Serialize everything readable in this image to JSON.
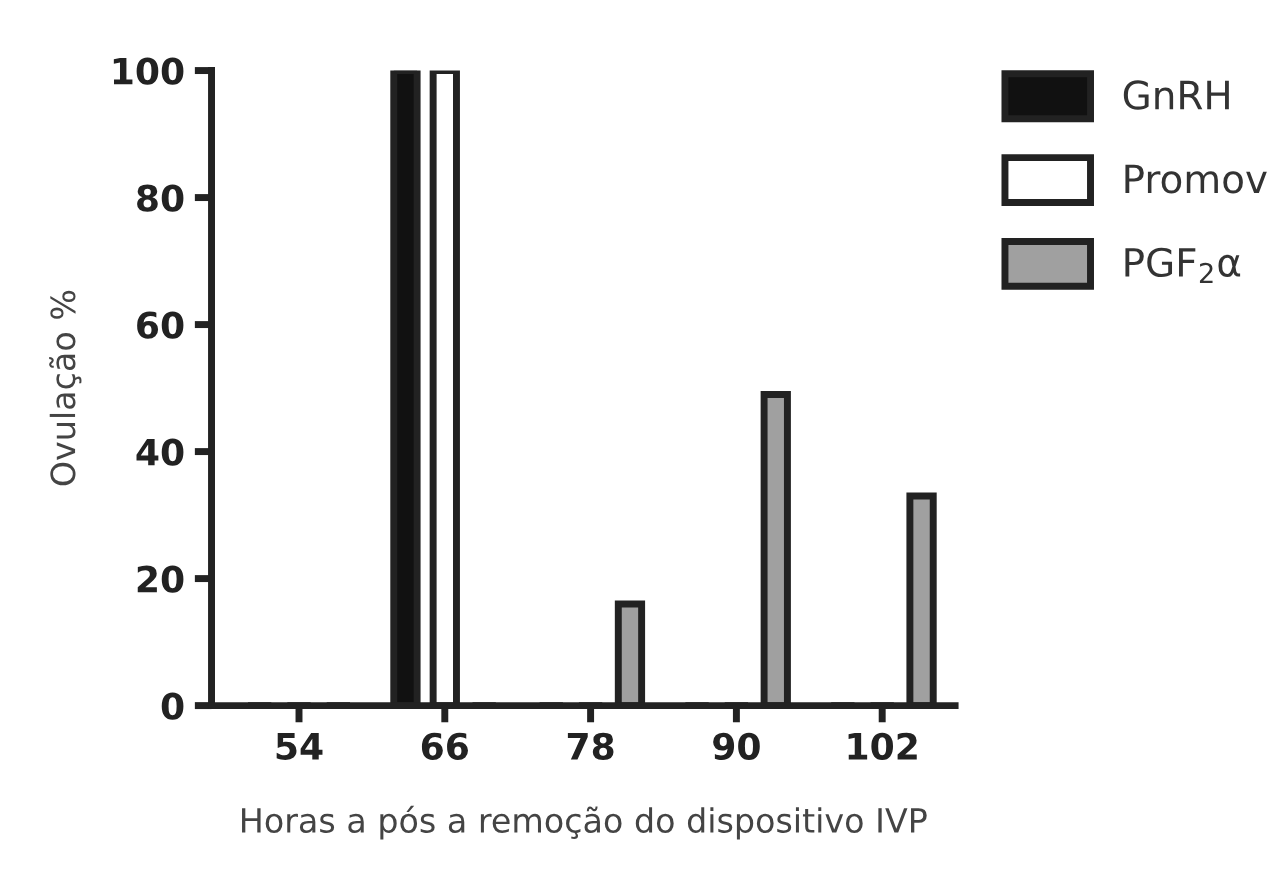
{
  "chart_data": {
    "type": "bar",
    "xlabel": "Horas a pós a remoção do dispositivo IVP",
    "ylabel": "Ovulação %",
    "categories": [
      "54",
      "66",
      "78",
      "90",
      "102"
    ],
    "series": [
      {
        "name": "GnRH",
        "color": "#111111",
        "values": [
          0,
          100,
          0,
          0,
          0
        ]
      },
      {
        "name": "Promov",
        "color": "#ffffff",
        "values": [
          0,
          100,
          0,
          0,
          0
        ]
      },
      {
        "name": "PGF$_{2}$α",
        "color": "#a0a0a0",
        "values": [
          0,
          0,
          16,
          49,
          33
        ]
      }
    ],
    "ylim": [
      0,
      100
    ],
    "yticks": [
      0,
      20,
      40,
      60,
      80,
      100
    ],
    "grid": false,
    "legend": "top right"
  }
}
